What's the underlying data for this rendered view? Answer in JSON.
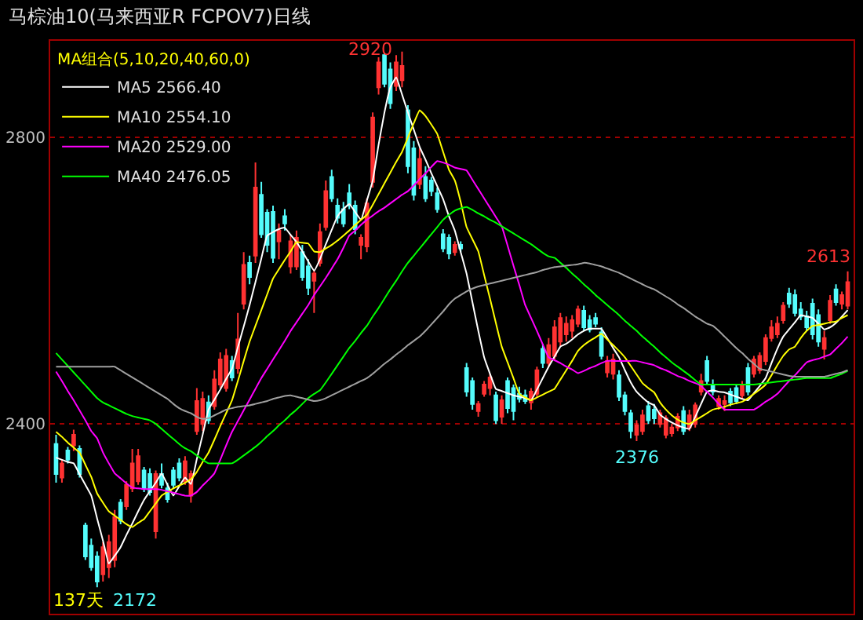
{
  "chart_data": {
    "type": "candlestick",
    "title": "马棕油10(马来西亚R FCPOV7)日线",
    "legend_title": "MA组合(5,10,20,40,60,0)",
    "categories": [
      null,
      null,
      null,
      null,
      null,
      null,
      null,
      null,
      null,
      null,
      null,
      null,
      null,
      null,
      null,
      null,
      null,
      null,
      null,
      null,
      null,
      null,
      null,
      null,
      null,
      null,
      null,
      null,
      null,
      null,
      null,
      null,
      null,
      null,
      null,
      null,
      null,
      null,
      null,
      null,
      null,
      null,
      null,
      null,
      null,
      null,
      null,
      null,
      null,
      null,
      null,
      null,
      null,
      null,
      null,
      null,
      null,
      null,
      null,
      null,
      null,
      null,
      null,
      null,
      null,
      null,
      null,
      null,
      null,
      null,
      null,
      null,
      null,
      null,
      null,
      null,
      null,
      null,
      null,
      null,
      null,
      null,
      null,
      null,
      null,
      null,
      null,
      null,
      null,
      null,
      null,
      null,
      null,
      null,
      null,
      null,
      null,
      null,
      null,
      null,
      null,
      null,
      null,
      null,
      null,
      null,
      null,
      null,
      null,
      null,
      null,
      null,
      null,
      null,
      null,
      null,
      null,
      null,
      null,
      null,
      null,
      null,
      null,
      null,
      null,
      null,
      null,
      null,
      null,
      null,
      null,
      null,
      null,
      null,
      null,
      null
    ],
    "ohlc": [
      [
        2372,
        2385,
        2318,
        2330
      ],
      [
        2325,
        2350,
        2318,
        2345
      ],
      [
        2363,
        2368,
        2345,
        2350
      ],
      [
        2370,
        2392,
        2362,
        2385
      ],
      [
        2365,
        2370,
        2325,
        2330
      ],
      [
        2258,
        2262,
        2210,
        2215
      ],
      [
        2230,
        2240,
        2195,
        2200
      ],
      [
        2215,
        2222,
        2172,
        2180
      ],
      [
        2190,
        2235,
        2180,
        2228
      ],
      [
        2200,
        2245,
        2185,
        2235
      ],
      [
        2210,
        2280,
        2200,
        2270
      ],
      [
        2290,
        2295,
        2260,
        2265
      ],
      [
        2285,
        2320,
        2280,
        2315
      ],
      [
        2310,
        2365,
        2305,
        2345
      ],
      [
        2320,
        2365,
        2315,
        2355
      ],
      [
        2335,
        2340,
        2305,
        2310
      ],
      [
        2330,
        2338,
        2300,
        2305
      ],
      [
        2250,
        2335,
        2240,
        2330
      ],
      [
        2330,
        2345,
        2310,
        2315
      ],
      [
        2310,
        2318,
        2290,
        2295
      ],
      [
        2335,
        2340,
        2310,
        2315
      ],
      [
        2345,
        2352,
        2320,
        2325
      ],
      [
        2320,
        2355,
        2315,
        2348
      ],
      [
        2300,
        2335,
        2290,
        2330
      ],
      [
        2390,
        2450,
        2385,
        2432
      ],
      [
        2400,
        2445,
        2390,
        2435
      ],
      [
        2430,
        2440,
        2400,
        2405
      ],
      [
        2425,
        2475,
        2420,
        2462
      ],
      [
        2455,
        2500,
        2450,
        2490
      ],
      [
        2450,
        2505,
        2445,
        2495
      ],
      [
        2488,
        2495,
        2460,
        2465
      ],
      [
        2478,
        2555,
        2470,
        2518
      ],
      [
        2568,
        2640,
        2560,
        2622
      ],
      [
        2625,
        2635,
        2595,
        2605
      ],
      [
        2635,
        2765,
        2625,
        2730
      ],
      [
        2720,
        2738,
        2660,
        2665
      ],
      [
        2695,
        2700,
        2640,
        2650
      ],
      [
        2696,
        2705,
        2625,
        2632
      ],
      [
        2655,
        2680,
        2630,
        2670
      ],
      [
        2690,
        2700,
        2670,
        2680
      ],
      [
        2620,
        2665,
        2610,
        2655
      ],
      [
        2620,
        2670,
        2615,
        2660
      ],
      [
        2640,
        2650,
        2600,
        2605
      ],
      [
        2620,
        2630,
        2580,
        2590
      ],
      [
        2600,
        2615,
        2555,
        2610
      ],
      [
        2625,
        2680,
        2620,
        2668
      ],
      [
        2675,
        2740,
        2670,
        2725
      ],
      [
        2745,
        2755,
        2710,
        2715
      ],
      [
        2705,
        2715,
        2680,
        2688
      ],
      [
        2700,
        2710,
        2675,
        2680
      ],
      [
        2722,
        2735,
        2700,
        2705
      ],
      [
        2705,
        2712,
        2665,
        2672
      ],
      [
        2650,
        2665,
        2630,
        2660
      ],
      [
        2648,
        2715,
        2640,
        2708
      ],
      [
        2738,
        2835,
        2730,
        2828
      ],
      [
        2870,
        2912,
        2860,
        2905
      ],
      [
        2915,
        2918,
        2870,
        2875
      ],
      [
        2895,
        2905,
        2840,
        2848
      ],
      [
        2872,
        2915,
        2865,
        2905
      ],
      [
        2880,
        2920,
        2870,
        2900
      ],
      [
        2838,
        2845,
        2750,
        2760
      ],
      [
        2785,
        2795,
        2712,
        2720
      ],
      [
        2735,
        2785,
        2728,
        2770
      ],
      [
        2745,
        2760,
        2710,
        2715
      ],
      [
        2740,
        2745,
        2718,
        2725
      ],
      [
        2722,
        2730,
        2695,
        2700
      ],
      [
        2665,
        2672,
        2640,
        2645
      ],
      [
        2660,
        2665,
        2630,
        2638
      ],
      [
        2640,
        2655,
        2635,
        2650
      ],
      [
        2650,
        2655,
        2640,
        2645
      ],
      [
        2478,
        2485,
        2438,
        2445
      ],
      [
        2460,
        2465,
        2420,
        2428
      ],
      [
        2418,
        2432,
        2410,
        2428
      ],
      [
        2442,
        2460,
        2438,
        2455
      ],
      [
        2450,
        2470,
        2440,
        2465
      ],
      [
        2440,
        2445,
        2400,
        2405
      ],
      [
        2410,
        2440,
        2400,
        2433
      ],
      [
        2460,
        2465,
        2415,
        2422
      ],
      [
        2450,
        2455,
        2405,
        2418
      ],
      [
        2442,
        2452,
        2430,
        2435
      ],
      [
        2440,
        2448,
        2428,
        2432
      ],
      [
        2430,
        2450,
        2420,
        2445
      ],
      [
        2442,
        2480,
        2438,
        2475
      ],
      [
        2505,
        2512,
        2478,
        2485
      ],
      [
        2485,
        2520,
        2480,
        2510
      ],
      [
        2495,
        2545,
        2490,
        2535
      ],
      [
        2515,
        2555,
        2508,
        2548
      ],
      [
        2525,
        2550,
        2515,
        2540
      ],
      [
        2530,
        2552,
        2520,
        2545
      ],
      [
        2540,
        2565,
        2535,
        2560
      ],
      [
        2558,
        2565,
        2530,
        2535
      ],
      [
        2545,
        2552,
        2528,
        2532
      ],
      [
        2548,
        2555,
        2535,
        2540
      ],
      [
        2528,
        2535,
        2490,
        2495
      ],
      [
        2472,
        2495,
        2465,
        2488
      ],
      [
        2470,
        2498,
        2462,
        2490
      ],
      [
        2468,
        2475,
        2432,
        2438
      ],
      [
        2440,
        2445,
        2412,
        2418
      ],
      [
        2415,
        2420,
        2380,
        2390
      ],
      [
        2385,
        2405,
        2376,
        2398
      ],
      [
        2390,
        2420,
        2385,
        2412
      ],
      [
        2425,
        2432,
        2400,
        2405
      ],
      [
        2420,
        2428,
        2400,
        2408
      ],
      [
        2400,
        2420,
        2395,
        2415
      ],
      [
        2385,
        2412,
        2380,
        2408
      ],
      [
        2387,
        2400,
        2382,
        2395
      ],
      [
        2395,
        2415,
        2390,
        2410
      ],
      [
        2418,
        2425,
        2385,
        2390
      ],
      [
        2395,
        2420,
        2390,
        2412
      ],
      [
        2400,
        2430,
        2395,
        2426
      ],
      [
        2445,
        2470,
        2440,
        2460
      ],
      [
        2488,
        2495,
        2455,
        2460
      ],
      [
        2455,
        2462,
        2440,
        2445
      ],
      [
        2425,
        2440,
        2420,
        2435
      ],
      [
        2428,
        2440,
        2418,
        2432
      ],
      [
        2445,
        2450,
        2425,
        2430
      ],
      [
        2450,
        2455,
        2428,
        2432
      ],
      [
        2440,
        2460,
        2435,
        2455
      ],
      [
        2478,
        2485,
        2440,
        2445
      ],
      [
        2470,
        2495,
        2465,
        2490
      ],
      [
        2475,
        2500,
        2470,
        2495
      ],
      [
        2488,
        2525,
        2482,
        2520
      ],
      [
        2520,
        2545,
        2515,
        2535
      ],
      [
        2525,
        2550,
        2520,
        2540
      ],
      [
        2545,
        2570,
        2540,
        2565
      ],
      [
        2582,
        2590,
        2562,
        2568
      ],
      [
        2580,
        2588,
        2550,
        2555
      ],
      [
        2560,
        2570,
        2545,
        2550
      ],
      [
        2550,
        2558,
        2530,
        2535
      ],
      [
        2568,
        2575,
        2518,
        2525
      ],
      [
        2552,
        2560,
        2508,
        2515
      ],
      [
        2505,
        2530,
        2490,
        2520
      ],
      [
        2545,
        2580,
        2540,
        2572
      ],
      [
        2588,
        2595,
        2565,
        2570
      ],
      [
        2568,
        2585,
        2560,
        2580
      ],
      [
        2565,
        2613,
        2560,
        2598
      ]
    ],
    "series": [
      {
        "type": "line",
        "name": "MA5 2566.40",
        "color": "#ffffff",
        "values": [
          2353,
          2350,
          2347,
          2345,
          2330,
          2315,
          2300,
          2268,
          2237,
          2205,
          2216,
          2228,
          2245,
          2261,
          2278,
          2294,
          2306,
          2318,
          2331,
          2315,
          2300,
          2313,
          2325,
          2316,
          2351,
          2385,
          2420,
          2434,
          2448,
          2463,
          2477,
          2507,
          2536,
          2566,
          2598,
          2631,
          2663,
          2668,
          2672,
          2674,
          2664,
          2654,
          2641,
          2627,
          2614,
          2630,
          2651,
          2671,
          2690,
          2700,
          2707,
          2696,
          2685,
          2712,
          2740,
          2790,
          2835,
          2870,
          2884,
          2860,
          2835,
          2811,
          2787,
          2769,
          2750,
          2732,
          2714,
          2690,
          2670,
          2640,
          2610,
          2570,
          2530,
          2493,
          2470,
          2449,
          2446,
          2443,
          2440,
          2438,
          2436,
          2433,
          2448,
          2464,
          2480,
          2494,
          2508,
          2512,
          2518,
          2525,
          2530,
          2533,
          2533,
          2533,
          2520,
          2506,
          2493,
          2475,
          2458,
          2445,
          2437,
          2430,
          2426,
          2413,
          2407,
          2402,
          2398,
          2395,
          2393,
          2410,
          2428,
          2445,
          2447,
          2445,
          2444,
          2441,
          2438,
          2435,
          2433,
          2443,
          2453,
          2464,
          2485,
          2505,
          2522,
          2532,
          2542,
          2552,
          2550,
          2548,
          2540,
          2532,
          2535,
          2541,
          2550,
          2559
        ]
      },
      {
        "type": "line",
        "name": "MA10 2554.10",
        "color": "#ffff00",
        "values": [
          2389,
          2382,
          2374,
          2367,
          2360,
          2343,
          2326,
          2303,
          2290,
          2278,
          2272,
          2266,
          2260,
          2256,
          2262,
          2267,
          2278,
          2289,
          2300,
          2305,
          2310,
          2314,
          2318,
          2323,
          2333,
          2347,
          2360,
          2378,
          2397,
          2415,
          2433,
          2460,
          2488,
          2515,
          2537,
          2559,
          2581,
          2603,
          2616,
          2629,
          2641,
          2654,
          2653,
          2652,
          2641,
          2640,
          2645,
          2650,
          2656,
          2663,
          2670,
          2678,
          2685,
          2692,
          2706,
          2721,
          2736,
          2751,
          2766,
          2780,
          2800,
          2820,
          2838,
          2830,
          2818,
          2805,
          2780,
          2755,
          2740,
          2710,
          2675,
          2658,
          2641,
          2608,
          2575,
          2541,
          2508,
          2486,
          2464,
          2442,
          2437,
          2433,
          2437,
          2441,
          2445,
          2449,
          2462,
          2475,
          2488,
          2502,
          2510,
          2516,
          2521,
          2526,
          2518,
          2510,
          2502,
          2493,
          2481,
          2469,
          2457,
          2450,
          2444,
          2430,
          2420,
          2412,
          2406,
          2402,
          2400,
          2405,
          2410,
          2415,
          2420,
          2422,
          2424,
          2427,
          2429,
          2431,
          2436,
          2442,
          2448,
          2455,
          2468,
          2482,
          2495,
          2504,
          2508,
          2520,
          2530,
          2537,
          2538,
          2540,
          2542,
          2543,
          2548,
          2552
        ]
      },
      {
        "type": "line",
        "name": "MA20 2529.00",
        "color": "#ff00ff",
        "values": [
          2473,
          2460,
          2446,
          2433,
          2419,
          2405,
          2390,
          2380,
          2360,
          2345,
          2331,
          2324,
          2317,
          2311,
          2310,
          2309,
          2309,
          2309,
          2308,
          2306,
          2304,
          2302,
          2300,
          2300,
          2305,
          2314,
          2322,
          2331,
          2350,
          2370,
          2389,
          2404,
          2419,
          2434,
          2449,
          2464,
          2477,
          2490,
          2503,
          2516,
          2530,
          2542,
          2554,
          2566,
          2580,
          2592,
          2604,
          2617,
          2630,
          2646,
          2663,
          2670,
          2678,
          2685,
          2691,
          2697,
          2702,
          2708,
          2714,
          2720,
          2725,
          2733,
          2742,
          2750,
          2759,
          2767,
          2765,
          2762,
          2758,
          2756,
          2754,
          2741,
          2728,
          2715,
          2702,
          2689,
          2676,
          2649,
          2621,
          2594,
          2566,
          2548,
          2530,
          2511,
          2493,
          2489,
          2485,
          2480,
          2476,
          2471,
          2474,
          2478,
          2481,
          2485,
          2488,
          2488,
          2488,
          2488,
          2488,
          2488,
          2486,
          2484,
          2482,
          2478,
          2475,
          2471,
          2467,
          2464,
          2460,
          2457,
          2453,
          2445,
          2437,
          2428,
          2420,
          2420,
          2420,
          2420,
          2420,
          2420,
          2425,
          2431,
          2436,
          2442,
          2451,
          2460,
          2468,
          2477,
          2486,
          2489,
          2491,
          2494,
          2497,
          2505,
          2513,
          2522
        ]
      },
      {
        "type": "line",
        "name": "MA40 2476.05",
        "color": "#00ff00",
        "values": [
          2499,
          2490,
          2481,
          2472,
          2463,
          2454,
          2445,
          2436,
          2430,
          2426,
          2422,
          2418,
          2414,
          2411,
          2409,
          2407,
          2405,
          2400,
          2393,
          2386,
          2379,
          2372,
          2366,
          2362,
          2356,
          2350,
          2345,
          2345,
          2345,
          2345,
          2345,
          2350,
          2356,
          2362,
          2368,
          2375,
          2383,
          2390,
          2398,
          2405,
          2413,
          2420,
          2428,
          2436,
          2442,
          2447,
          2458,
          2470,
          2482,
          2494,
          2506,
          2516,
          2527,
          2537,
          2550,
          2562,
          2575,
          2588,
          2600,
          2613,
          2625,
          2635,
          2645,
          2655,
          2665,
          2675,
          2685,
          2692,
          2698,
          2701,
          2703,
          2699,
          2694,
          2690,
          2685,
          2681,
          2676,
          2671,
          2666,
          2661,
          2656,
          2651,
          2645,
          2639,
          2634,
          2632,
          2625,
          2618,
          2610,
          2603,
          2595,
          2588,
          2580,
          2573,
          2566,
          2559,
          2552,
          2544,
          2537,
          2530,
          2522,
          2515,
          2508,
          2500,
          2493,
          2486,
          2480,
          2474,
          2468,
          2461,
          2455,
          2455,
          2455,
          2455,
          2455,
          2455,
          2455,
          2455,
          2455,
          2455,
          2456,
          2457,
          2458,
          2459,
          2460,
          2461,
          2462,
          2463,
          2464,
          2464,
          2464,
          2464,
          2464,
          2467,
          2470,
          2474
        ]
      },
      {
        "type": "line",
        "color": "#a0a0a0",
        "values": [
          2480,
          2480,
          2480,
          2480,
          2480,
          2480,
          2480,
          2480,
          2480,
          2480,
          2480,
          2475,
          2470,
          2465,
          2460,
          2455,
          2450,
          2445,
          2440,
          2435,
          2428,
          2422,
          2418,
          2415,
          2410,
          2407,
          2408,
          2412,
          2416,
          2420,
          2422,
          2424,
          2425,
          2426,
          2428,
          2430,
          2432,
          2435,
          2437,
          2439,
          2440,
          2438,
          2436,
          2434,
          2432,
          2433,
          2436,
          2440,
          2444,
          2448,
          2452,
          2456,
          2460,
          2464,
          2470,
          2477,
          2484,
          2490,
          2497,
          2503,
          2510,
          2516,
          2522,
          2530,
          2539,
          2548,
          2557,
          2567,
          2575,
          2580,
          2585,
          2589,
          2592,
          2594,
          2596,
          2598,
          2600,
          2602,
          2604,
          2606,
          2608,
          2610,
          2612,
          2615,
          2617,
          2619,
          2620,
          2621,
          2622,
          2623,
          2625,
          2624,
          2622,
          2620,
          2617,
          2614,
          2611,
          2607,
          2603,
          2599,
          2595,
          2591,
          2588,
          2583,
          2578,
          2573,
          2567,
          2562,
          2556,
          2550,
          2545,
          2540,
          2537,
          2530,
          2522,
          2514,
          2506,
          2499,
          2491,
          2484,
          2477,
          2475,
          2473,
          2471,
          2469,
          2467,
          2466,
          2466,
          2466,
          2466,
          2466,
          2466,
          2468,
          2470,
          2472,
          2475
        ]
      }
    ],
    "annotations": [
      "2920",
      "2613",
      "2376",
      "2172",
      "137天"
    ],
    "ylim": [
      2135,
      2935
    ],
    "yticks": [
      2400,
      2800
    ],
    "grid": "y",
    "legend": "top left",
    "tick_labels": "y"
  }
}
